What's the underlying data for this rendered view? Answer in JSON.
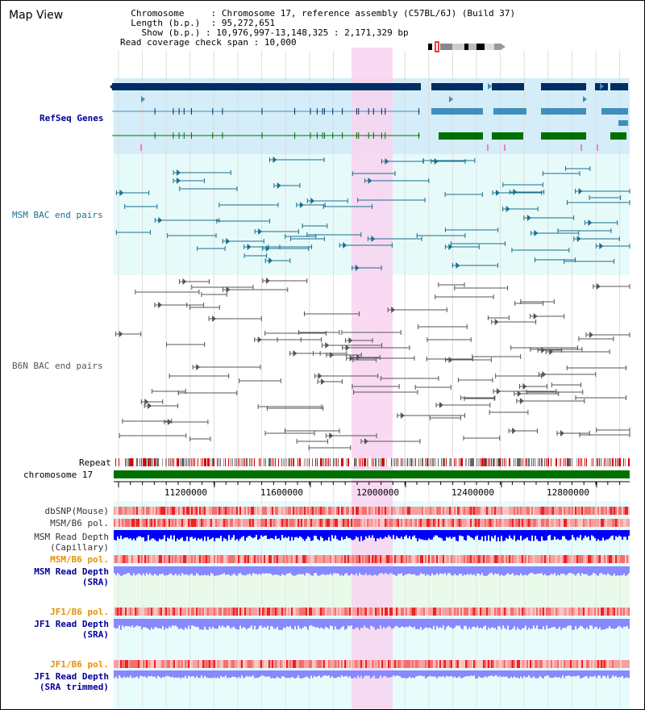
{
  "page": {
    "title": "Map View"
  },
  "info": {
    "chromosome_key": "Chromosome",
    "chromosome": "Chromosome 17, reference assembly (C57BL/6J) (Build 37)",
    "length_key": "Length (b.p.)",
    "length": "95,272,651",
    "show_key": "Show (b.p.)",
    "show": "10,976,997-13,148,325 : 2,171,329 bp",
    "coverage_key": "Read coverage check span",
    "coverage": "10,000"
  },
  "tracks": {
    "refseq": "RefSeq Genes",
    "msm_bac": "MSM BAC end pairs",
    "b6n_bac": "B6N BAC end pairs",
    "repeat": "Repeat",
    "chromosome": "chromosome 17",
    "dbsnp": "dbSNP(Mouse)",
    "msm_b6_pol_1": "MSM/B6 pol.",
    "msm_depth_cap_1": "MSM Read Depth",
    "msm_depth_cap_2": "(Capillary)",
    "msm_b6_pol_2": "MSM/B6 pol.",
    "msm_depth_sra_1": "MSM Read Depth",
    "msm_depth_sra_2": "(SRA)",
    "jf1_pol_1": "JF1/B6 pol.",
    "jf1_depth_sra_1": "JF1 Read Depth",
    "jf1_depth_sra_2": "(SRA)",
    "jf1_pol_2": "JF1/B6 pol.",
    "jf1_depth_trim_1": "JF1 Read Depth",
    "jf1_depth_trim_2": "(SRA trimmed)"
  },
  "axis": {
    "ticks": [
      "11200000",
      "11600000",
      "12000000",
      "12400000",
      "12800000"
    ]
  },
  "colors": {
    "refseq_bg": "#d4edf9",
    "msm_bac_bg": "#e6fafa",
    "highlight": "#f8d3f0",
    "gene_dark": "#002d62",
    "gene_mid": "#3f8fba",
    "gene_green": "#007000",
    "msm_pair": "#1a6f8f",
    "b6n_pair": "#555555",
    "chrom_bar": "#007000",
    "depth_dark": "#0000ff",
    "depth_light": "#8888ff",
    "label_blue": "#000099",
    "label_teal": "#1a6f8f",
    "label_orange": "#e88f00"
  }
}
